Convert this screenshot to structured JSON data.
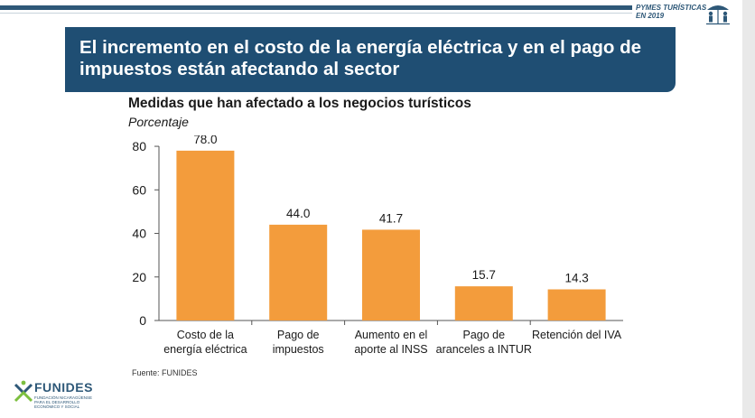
{
  "header": {
    "badge_line1": "PYMES TURÍSTICAS",
    "badge_line2": "EN 2019",
    "badge_icon": "people-under-umbrella-icon"
  },
  "banner": {
    "title": "El incremento en el costo de la energía eléctrica y en el pago de impuestos están afectando al sector"
  },
  "chart_data": {
    "type": "bar",
    "title": "Medidas que han afectado a los negocios turísticos",
    "subtitle": "Porcentaje",
    "categories": [
      [
        "Costo de la",
        "energía eléctrica"
      ],
      [
        "Pago de",
        "impuestos"
      ],
      [
        "Aumento en el",
        "aporte al INSS"
      ],
      [
        "Pago de",
        "aranceles a INTUR"
      ],
      [
        "Retención del IVA"
      ]
    ],
    "values": [
      78.0,
      44.0,
      41.7,
      15.7,
      14.3
    ],
    "value_labels": [
      "78.0",
      "44.0",
      "41.7",
      "15.7",
      "14.3"
    ],
    "yticks": [
      0,
      20,
      40,
      60,
      80
    ],
    "ylim": [
      0,
      85
    ],
    "grid": false,
    "legend": "none",
    "bar_color": "#f39c3c"
  },
  "footer": {
    "source": "Fuente: FUNIDES",
    "logo_word": "FUNIDES",
    "logo_tagline": "FUNDACIÓN NICARAGÜENSE PARA EL DESARROLLO ECONÓMICO Y SOCIAL",
    "logo_icon": "funides-star-icon"
  }
}
